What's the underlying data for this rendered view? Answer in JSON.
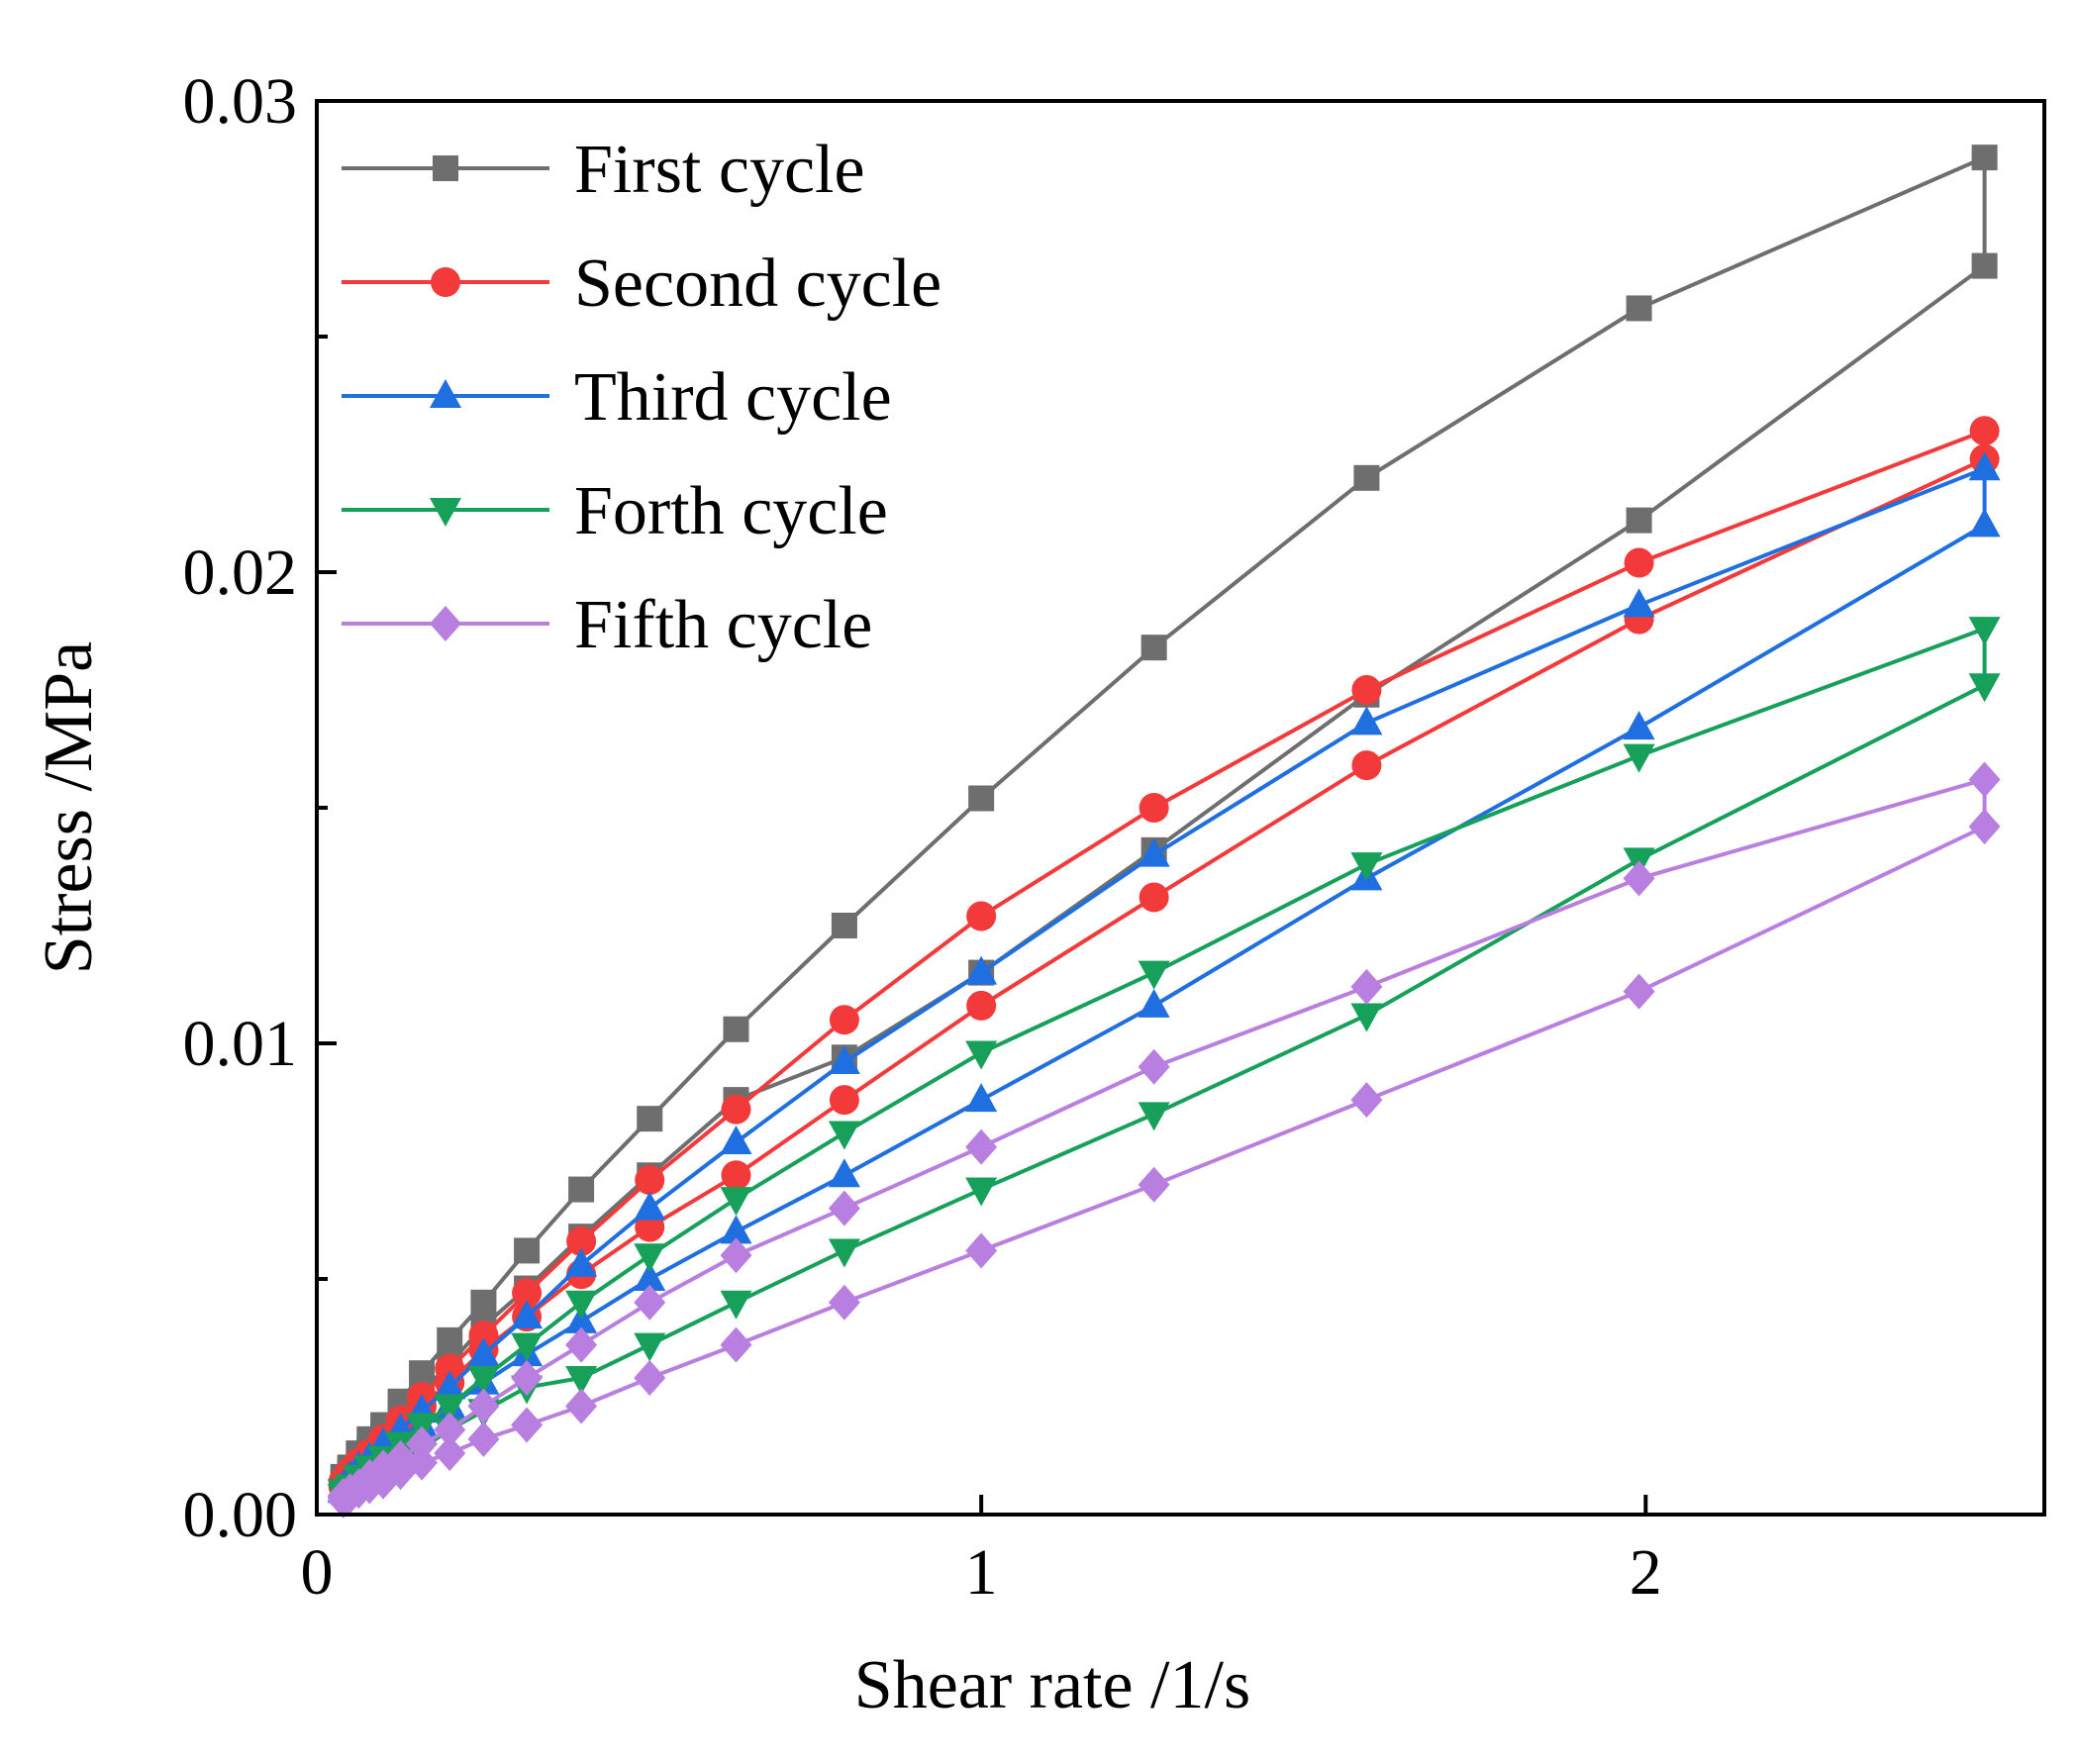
{
  "chart_data": {
    "type": "line",
    "title": "",
    "xlabel": "Shear rate /1/s",
    "ylabel": "Stress /MPa",
    "xlim": [
      0,
      2.6
    ],
    "ylim": [
      0,
      0.03
    ],
    "x_ticks": [
      0,
      1,
      2
    ],
    "x_tick_labels": [
      "0",
      "1",
      "2"
    ],
    "y_ticks": [
      0,
      0.01,
      0.02,
      0.03
    ],
    "y_tick_labels": [
      "0.00",
      "0.01",
      "0.02",
      "0.03"
    ],
    "y_minor_ticks": [
      0.005,
      0.015,
      0.025
    ],
    "grid": false,
    "legend_position": "top-left",
    "x": [
      0.0398,
      0.0501,
      0.0631,
      0.0794,
      0.1,
      0.126,
      0.158,
      0.2,
      0.251,
      0.316,
      0.398,
      0.501,
      0.631,
      0.794,
      1.0,
      1.26,
      1.58,
      1.99,
      2.51
    ],
    "series": [
      {
        "name": "First cycle",
        "color": "#6e6e6e",
        "marker": "square",
        "up": [
          0.0008,
          0.001,
          0.0013,
          0.0016,
          0.0019,
          0.0024,
          0.003,
          0.0037,
          0.0045,
          0.0056,
          0.0069,
          0.0084,
          0.0103,
          0.0125,
          0.0152,
          0.0184,
          0.022,
          0.0256,
          0.0288
        ],
        "down": [
          0.0007,
          0.0009,
          0.0011,
          0.0014,
          0.0017,
          0.0021,
          0.0026,
          0.0032,
          0.004,
          0.0048,
          0.0059,
          0.0072,
          0.0088,
          0.0097,
          0.0115,
          0.0141,
          0.0174,
          0.0211,
          0.0265
        ]
      },
      {
        "name": "Second cycle",
        "color": "#f23a3a",
        "marker": "circle",
        "up": [
          0.0007,
          0.0009,
          0.0011,
          0.0013,
          0.0016,
          0.002,
          0.0025,
          0.0031,
          0.0038,
          0.0047,
          0.0058,
          0.0071,
          0.0086,
          0.0105,
          0.0127,
          0.015,
          0.0175,
          0.0202,
          0.023
        ],
        "down": [
          0.0006,
          0.0008,
          0.001,
          0.0012,
          0.0015,
          0.0018,
          0.0023,
          0.0028,
          0.0035,
          0.0042,
          0.0051,
          0.0061,
          0.0072,
          0.0088,
          0.0108,
          0.0131,
          0.0159,
          0.019,
          0.0224
        ]
      },
      {
        "name": "Third cycle",
        "color": "#1f6fe0",
        "marker": "triangle-up",
        "up": [
          0.0006,
          0.0008,
          0.001,
          0.0012,
          0.0015,
          0.0018,
          0.0022,
          0.0027,
          0.0034,
          0.0042,
          0.0053,
          0.0065,
          0.0079,
          0.0096,
          0.0115,
          0.014,
          0.0168,
          0.0193,
          0.0222
        ],
        "down": [
          0.0005,
          0.0006,
          0.0008,
          0.001,
          0.0012,
          0.0015,
          0.0019,
          0.0023,
          0.0028,
          0.0034,
          0.0041,
          0.005,
          0.006,
          0.0072,
          0.0088,
          0.0108,
          0.0135,
          0.0167,
          0.021
        ]
      },
      {
        "name": "Forth cycle",
        "color": "#16a05a",
        "marker": "triangle-down",
        "up": [
          0.0005,
          0.0006,
          0.0008,
          0.001,
          0.0012,
          0.0015,
          0.0019,
          0.0023,
          0.0029,
          0.0036,
          0.0045,
          0.0055,
          0.0067,
          0.0081,
          0.0098,
          0.0115,
          0.0138,
          0.0161,
          0.0188
        ],
        "down": [
          0.0004,
          0.0005,
          0.0006,
          0.0008,
          0.001,
          0.0012,
          0.0014,
          0.0018,
          0.0022,
          0.0027,
          0.0029,
          0.0036,
          0.0045,
          0.0056,
          0.0069,
          0.0085,
          0.0106,
          0.0139,
          0.0176
        ]
      },
      {
        "name": "Fifth cycle",
        "color": "#b87ee0",
        "marker": "diamond",
        "up": [
          0.0004,
          0.0005,
          0.0006,
          0.0008,
          0.001,
          0.0012,
          0.0015,
          0.0018,
          0.0023,
          0.0029,
          0.0036,
          0.0045,
          0.0055,
          0.0065,
          0.0078,
          0.0095,
          0.0112,
          0.0135,
          0.0156
        ],
        "down": [
          0.0003,
          0.0004,
          0.0005,
          0.0006,
          0.0007,
          0.0009,
          0.0011,
          0.0013,
          0.0016,
          0.0019,
          0.0023,
          0.0029,
          0.0036,
          0.0045,
          0.0056,
          0.007,
          0.0088,
          0.0111,
          0.0146
        ]
      }
    ]
  }
}
